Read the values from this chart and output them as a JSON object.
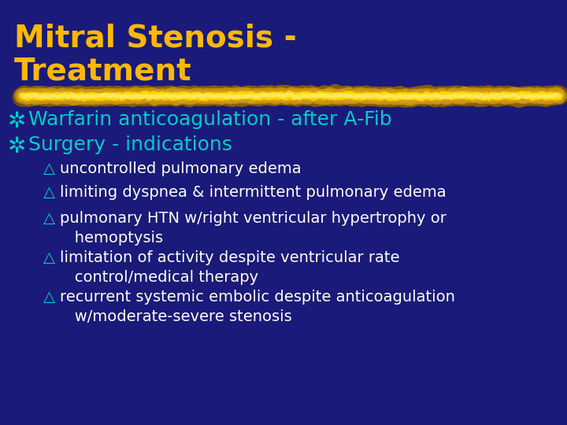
{
  "background_color": "#1a1a7a",
  "title_line1": "Mitral Stenosis -",
  "title_line2": "Treatment",
  "title_color": "#FFB800",
  "title_fontsize": 28,
  "title_bold": true,
  "bullet_main_color": "#00CCCC",
  "bullet_main_fontsize": 18,
  "bullet_z_char": "✶",
  "bullet1_text": "Warfarin anticoagulation - after A-Fib",
  "bullet2_text": "Surgery - indications",
  "sub_bullet_prefix": "△",
  "sub_bullet_prefix_color": "#00CCCC",
  "sub_bullet_color": "#FFFFFF",
  "sub_bullet_fontsize": 14,
  "sub_lines": [
    "uncontrolled pulmonary edema",
    "limiting dyspnea & intermittent pulmonary edema",
    "pulmonary HTN w/right ventricular hypertrophy or\n   hemoptysis",
    "limitation of activity despite ventricular rate\n   control/medical therapy",
    "recurrent systemic embolic despite anticoagulation\n   w/moderate-severe stenosis"
  ]
}
